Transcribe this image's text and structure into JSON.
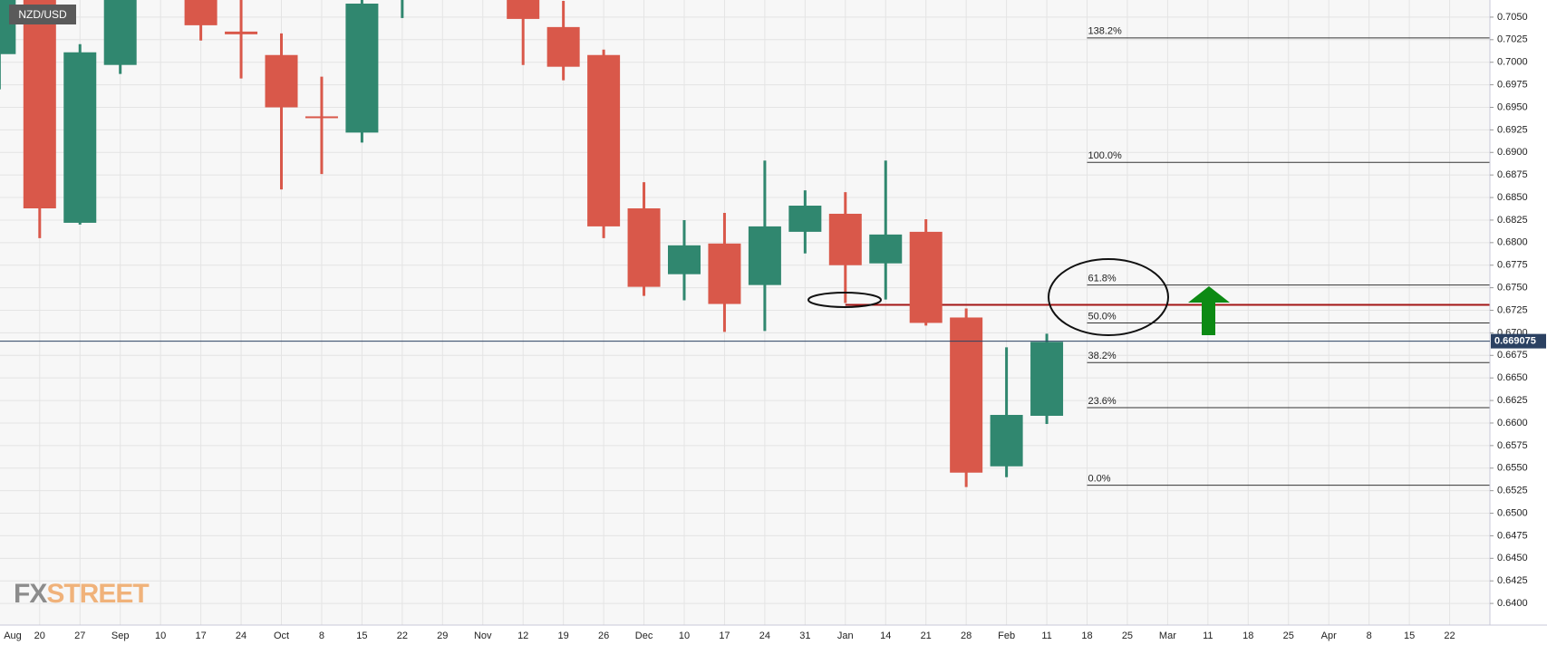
{
  "chart_data": {
    "type": "candlestick",
    "title": "NZD/USD",
    "watermark": {
      "prefix": "FX",
      "suffix": "STREET"
    },
    "categories": [
      "Aug",
      "20",
      "27",
      "Sep",
      "10",
      "17",
      "24",
      "Oct",
      "8",
      "15",
      "22",
      "29",
      "Nov",
      "12",
      "19",
      "26",
      "Dec",
      "10",
      "17",
      "24",
      "31",
      "Jan",
      "14",
      "21",
      "28",
      "Feb",
      "11",
      "18",
      "25",
      "Mar",
      "11",
      "18",
      "25",
      "Apr",
      "8",
      "15",
      "22"
    ],
    "open": [
      0.7009,
      0.709,
      0.6822,
      0.6997,
      null,
      0.709,
      0.7034,
      0.7008,
      0.694,
      0.6922,
      0.7075,
      null,
      null,
      0.709,
      0.7039,
      0.7008,
      0.6838,
      0.6765,
      0.6799,
      0.6753,
      0.6812,
      0.6832,
      0.6777,
      0.6812,
      0.6717,
      0.6552,
      0.6608,
      null,
      null,
      null,
      null,
      null,
      null,
      null,
      null,
      null,
      null
    ],
    "high": [
      0.709,
      0.71,
      0.702,
      0.7095,
      null,
      0.71,
      0.7075,
      0.7032,
      0.6984,
      0.708,
      0.711,
      null,
      null,
      0.711,
      0.7068,
      0.7014,
      0.6867,
      0.6825,
      0.6833,
      0.6891,
      0.6858,
      0.6856,
      0.6891,
      0.6826,
      0.6727,
      0.6684,
      0.6699,
      null,
      null,
      null,
      null,
      null,
      null,
      null,
      null,
      null,
      null
    ],
    "low": [
      0.697,
      0.6805,
      0.682,
      0.6987,
      null,
      0.7024,
      0.6982,
      0.6859,
      0.6876,
      0.6911,
      0.7049,
      null,
      null,
      0.6997,
      0.698,
      0.6805,
      0.6741,
      0.6736,
      0.6701,
      0.6702,
      0.6788,
      0.6733,
      0.6737,
      0.6708,
      0.6529,
      0.654,
      0.6599,
      null,
      null,
      null,
      null,
      null,
      null,
      null,
      null,
      null,
      null
    ],
    "close": [
      0.7075,
      0.6838,
      0.7011,
      0.708,
      null,
      0.7041,
      0.7031,
      0.695,
      0.6939,
      0.7065,
      0.71,
      null,
      null,
      0.7048,
      0.6995,
      0.6818,
      0.6751,
      0.6797,
      0.6732,
      0.6818,
      0.6841,
      0.6775,
      0.6809,
      0.6711,
      0.6545,
      0.6609,
      0.669,
      null,
      null,
      null,
      null,
      null,
      null,
      null,
      null,
      null,
      null
    ],
    "up_color": "#30876f",
    "down_color": "#d9584a",
    "ylim": [
      0.6376,
      0.7069
    ],
    "yticks": [
      {
        "value": 0.64,
        "label": "0.6400"
      },
      0.6425,
      {
        "value": 0.645,
        "label": "0.6450"
      },
      0.6475,
      {
        "value": 0.65,
        "label": "0.6500"
      },
      0.6525,
      {
        "value": 0.655,
        "label": "0.6550"
      },
      0.6575,
      {
        "value": 0.66,
        "label": "0.6600"
      },
      0.6625,
      {
        "value": 0.665,
        "label": "0.6650"
      },
      0.6675,
      {
        "value": 0.67,
        "label": "0.6700"
      },
      0.6725,
      {
        "value": 0.675,
        "label": "0.6750"
      },
      0.6775,
      {
        "value": 0.68,
        "label": "0.6800"
      },
      0.6825,
      {
        "value": 0.685,
        "label": "0.6850"
      },
      0.6875,
      {
        "value": 0.69,
        "label": "0.6900"
      },
      0.6925,
      {
        "value": 0.695,
        "label": "0.6950"
      },
      0.6975,
      {
        "value": 0.7,
        "label": "0.7000"
      },
      0.7025,
      {
        "value": 0.705,
        "label": "0.7050"
      }
    ],
    "grid": true,
    "current_price": 0.669075,
    "current_price_color": "#2b4162",
    "support_line": 0.6731,
    "support_color": "#a31515",
    "fib_levels": [
      {
        "label": "138.2%",
        "value": 0.7027
      },
      {
        "label": "100.0%",
        "value": 0.6889
      },
      {
        "label": "61.8%",
        "value": 0.6753
      },
      {
        "label": "50.0%",
        "value": 0.6711
      },
      {
        "label": "38.2%",
        "value": 0.6667
      },
      {
        "label": "23.6%",
        "value": 0.6617
      },
      {
        "label": "0.0%",
        "value": 0.6531
      }
    ]
  }
}
